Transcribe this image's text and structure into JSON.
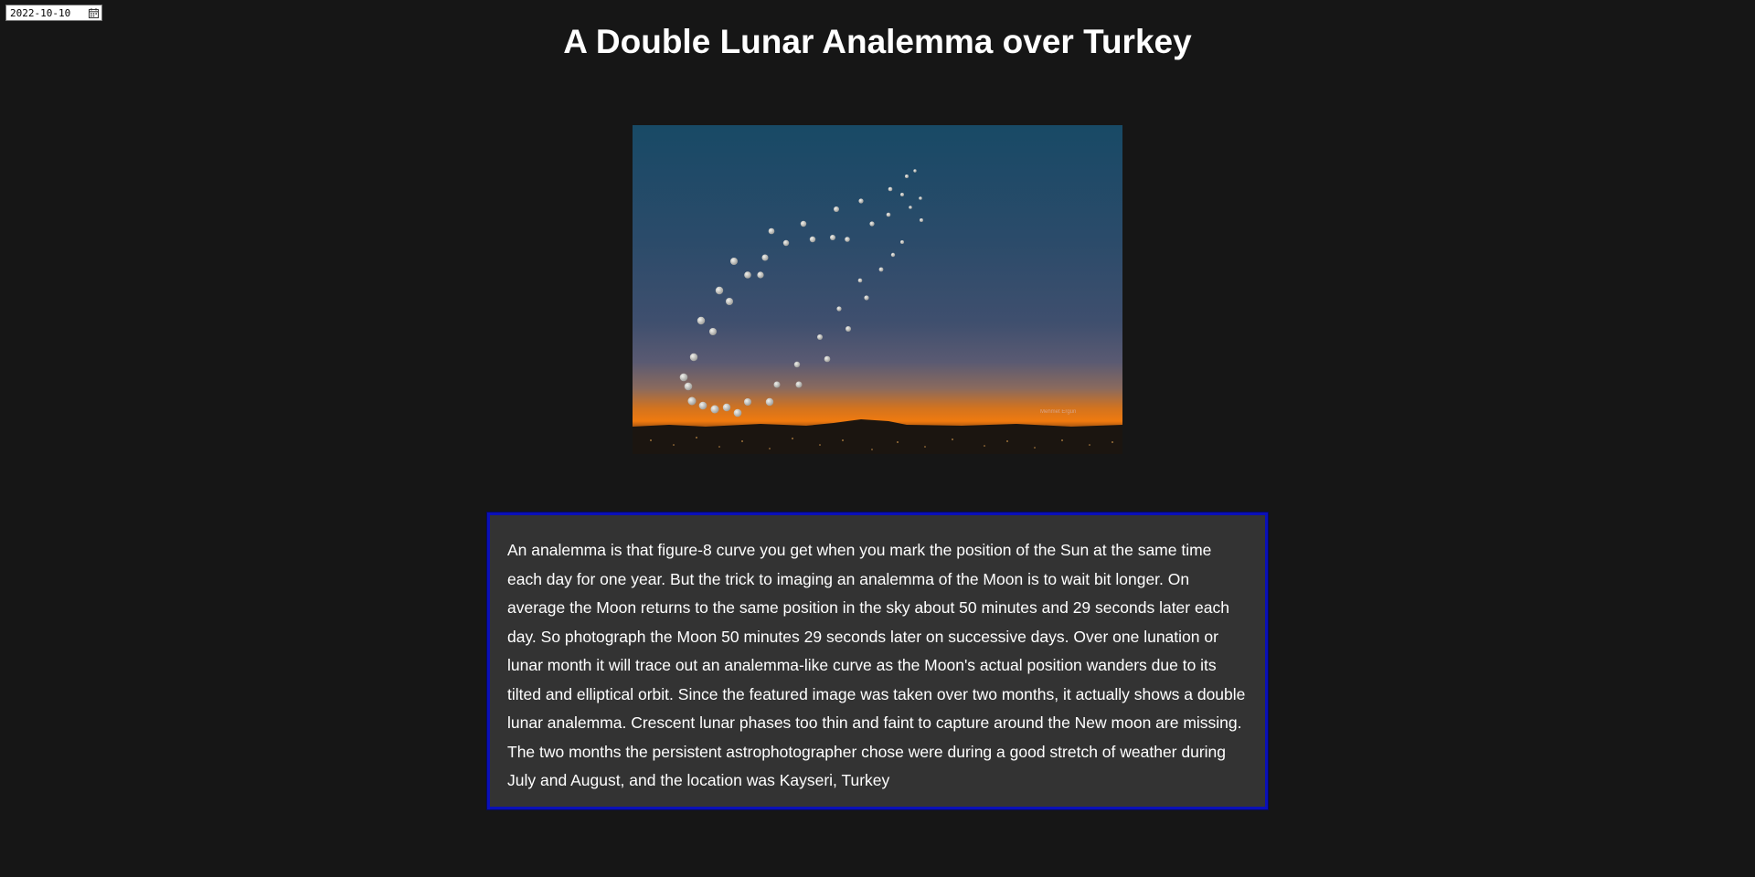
{
  "date_input": {
    "value": "2022-10-10",
    "icon": "calendar-icon"
  },
  "page": {
    "title": "A Double Lunar Analemma over Turkey"
  },
  "image": {
    "alt": "A Double Lunar Analemma over Turkey",
    "watermark": "Mehmet Ergün"
  },
  "explanation": {
    "text": "An analemma is that figure-8 curve you get when you mark the position of the Sun at the same time each day for one year. But the trick to imaging an analemma of the Moon is to wait bit longer. On average the Moon returns to the same position in the sky about 50 minutes and 29 seconds later each day. So photograph the Moon 50 minutes 29 seconds later on successive days. Over one lunation or lunar month it will trace out an analemma-like curve as the Moon's actual position wanders due to its tilted and elliptical orbit. Since the featured image was taken over two months, it actually shows a double lunar analemma. Crescent lunar phases too thin and faint to capture around the New moon are missing. The two months the persistent astrophotographer chose were during a good stretch of weather during July and August, and the location was Kayseri, Turkey"
  }
}
